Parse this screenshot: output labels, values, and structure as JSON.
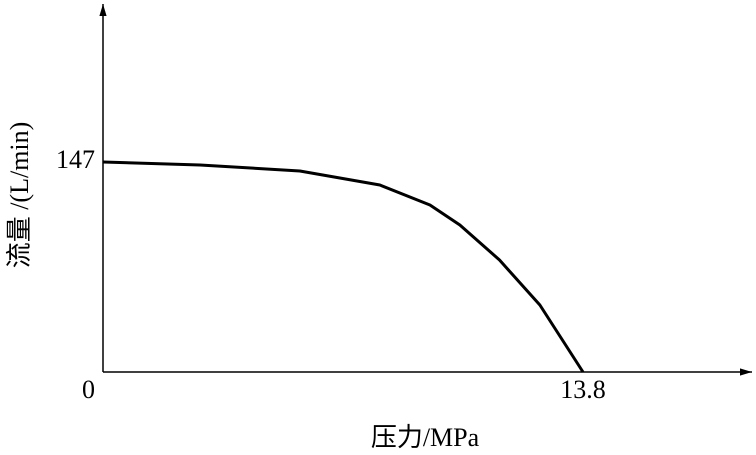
{
  "chart_data": {
    "type": "line",
    "x_label": "压力/MPa",
    "y_label": "流量 /(L/min)",
    "x": [
      0,
      2.79,
      5.66,
      7.96,
      9.4,
      10.26,
      11.4,
      12.56,
      13.8
    ],
    "values": [
      147,
      144.9,
      140.7,
      130.9,
      116.9,
      102.9,
      78.4,
      46.9,
      0
    ],
    "color": "#000000",
    "xlim": [
      0,
      18.6
    ],
    "ylim": [
      0,
      255
    ],
    "xticks": [
      0,
      13.8
    ],
    "yticks": [
      147
    ],
    "grid": false
  }
}
